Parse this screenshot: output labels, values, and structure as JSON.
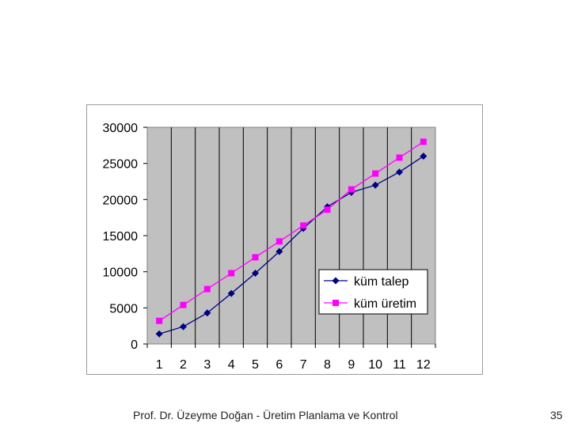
{
  "chart_data": {
    "type": "line",
    "x": [
      1,
      2,
      3,
      4,
      5,
      6,
      7,
      8,
      9,
      10,
      11,
      12
    ],
    "xlim": [
      0.5,
      12.5
    ],
    "ylim": [
      0,
      30000
    ],
    "yticks": [
      0,
      5000,
      10000,
      15000,
      20000,
      25000,
      30000
    ],
    "grid": "vertical",
    "legend_position": "bottom-right",
    "plot_background": "#c0c0c0",
    "series": [
      {
        "name": "küm talep",
        "color": "#000080",
        "marker": "diamond",
        "values": [
          1400,
          2400,
          4300,
          7000,
          9800,
          12800,
          16000,
          19000,
          21000,
          22000,
          23800,
          26000
        ]
      },
      {
        "name": "küm üretim",
        "color": "#ff00ff",
        "marker": "square",
        "values": [
          3200,
          5400,
          7600,
          9800,
          12000,
          14200,
          16400,
          18600,
          21400,
          23600,
          25800,
          28000
        ]
      }
    ]
  },
  "footer": {
    "title": "Prof. Dr. Üzeyme Doğan - Üretim Planlama ve Kontrol",
    "page_number": "35"
  }
}
